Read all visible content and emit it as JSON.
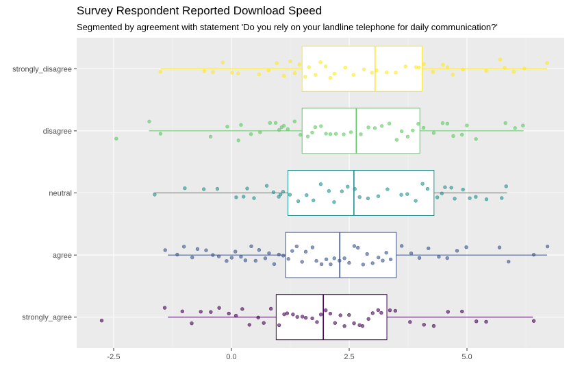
{
  "chart_data": {
    "type": "boxplot",
    "title": "Survey Respondent Reported Download Speed",
    "subtitle": "Segmented by agreement with statement 'Do you rely on your landline telephone for daily communication?'",
    "xlabel": "",
    "ylabel": "",
    "xlim": [
      -3.2,
      6.9
    ],
    "x_ticks": [
      -2.5,
      0.0,
      2.5,
      5.0
    ],
    "x_tick_labels": [
      "-2.5",
      "0.0",
      "2.5",
      "5.0"
    ],
    "categories": [
      "strongly_disagree",
      "disagree",
      "neutral",
      "agree",
      "strongly_agree"
    ],
    "grid": true,
    "legend": "none",
    "colors": {
      "strongly_disagree": "#fde725",
      "disagree": "#5ec962",
      "neutral": "#21918c",
      "agree": "#3b528b",
      "strongly_agree": "#440154"
    },
    "boxes": [
      {
        "category": "strongly_disagree",
        "whisker_low": -1.5,
        "q1": 1.5,
        "median": 3.05,
        "q3": 4.05,
        "whisker_high": 6.7
      },
      {
        "category": "disagree",
        "whisker_low": -1.75,
        "q1": 1.5,
        "median": 2.65,
        "q3": 4.0,
        "whisker_high": 6.2
      },
      {
        "category": "neutral",
        "whisker_low": -1.65,
        "q1": 1.2,
        "median": 2.6,
        "q3": 4.3,
        "whisker_high": 5.85
      },
      {
        "category": "agree",
        "whisker_low": -1.35,
        "q1": 1.15,
        "median": 2.3,
        "q3": 3.5,
        "whisker_high": 6.7
      },
      {
        "category": "strongly_agree",
        "whisker_low": -1.35,
        "q1": 0.95,
        "median": 1.95,
        "q3": 3.3,
        "whisker_high": 6.4
      }
    ],
    "points": {
      "strongly_disagree": [
        -1.5,
        -0.6,
        -0.4,
        -0.2,
        0.0,
        0.15,
        0.6,
        0.8,
        0.95,
        1.1,
        1.25,
        1.35,
        1.45,
        1.55,
        1.65,
        1.8,
        1.9,
        2.0,
        2.1,
        2.2,
        2.4,
        2.6,
        2.8,
        3.0,
        3.1,
        3.3,
        3.5,
        3.7,
        3.9,
        4.0,
        4.1,
        4.3,
        4.5,
        4.6,
        4.7,
        4.9,
        5.4,
        5.7,
        5.8,
        6.0,
        6.2,
        6.7
      ],
      "disagree": [
        -2.45,
        -1.75,
        -1.5,
        -0.45,
        -0.1,
        0.15,
        0.2,
        0.4,
        0.6,
        0.8,
        0.95,
        1.0,
        1.05,
        1.1,
        1.2,
        1.35,
        1.45,
        1.6,
        1.7,
        1.8,
        1.9,
        2.0,
        2.1,
        2.2,
        2.4,
        2.55,
        2.75,
        2.9,
        3.05,
        3.2,
        3.35,
        3.5,
        3.6,
        3.75,
        3.85,
        3.95,
        4.1,
        4.3,
        4.5,
        4.6,
        4.7,
        4.9,
        5.0,
        5.2,
        5.8,
        6.0,
        6.2
      ],
      "neutral": [
        -1.65,
        -1.0,
        -0.6,
        -0.3,
        0.1,
        0.25,
        0.35,
        0.5,
        0.75,
        0.9,
        1.0,
        1.05,
        1.1,
        1.25,
        1.4,
        1.6,
        1.75,
        1.9,
        2.05,
        2.2,
        2.35,
        2.45,
        2.6,
        2.7,
        2.9,
        3.1,
        3.3,
        3.6,
        3.75,
        3.9,
        4.05,
        4.15,
        4.35,
        4.45,
        4.55,
        4.65,
        4.75,
        4.9,
        5.05,
        5.2,
        5.4,
        5.75,
        5.85
      ],
      "agree": [
        -1.4,
        -1.15,
        -1.0,
        -0.85,
        -0.7,
        -0.55,
        -0.4,
        -0.25,
        -0.1,
        0.0,
        0.1,
        0.2,
        0.3,
        0.4,
        0.5,
        0.6,
        0.7,
        0.8,
        0.9,
        1.0,
        1.1,
        1.2,
        1.3,
        1.4,
        1.5,
        1.6,
        1.7,
        1.8,
        1.9,
        2.0,
        2.1,
        2.2,
        2.3,
        2.4,
        2.5,
        2.6,
        2.7,
        2.8,
        2.9,
        3.0,
        3.1,
        3.2,
        3.3,
        3.4,
        3.6,
        3.8,
        4.0,
        4.2,
        4.4,
        4.6,
        4.8,
        5.0,
        5.7,
        5.9,
        6.4,
        6.7
      ],
      "strongly_agree": [
        -2.75,
        -1.4,
        -1.05,
        -0.85,
        -0.65,
        -0.45,
        -0.25,
        -0.05,
        0.1,
        0.25,
        0.4,
        0.55,
        0.7,
        0.85,
        1.0,
        1.1,
        1.2,
        1.3,
        1.4,
        1.5,
        1.6,
        1.7,
        1.8,
        1.9,
        2.0,
        2.1,
        2.2,
        2.3,
        2.4,
        2.5,
        2.6,
        2.7,
        2.8,
        2.9,
        3.0,
        3.1,
        3.2,
        3.35,
        3.5,
        3.8,
        4.1,
        4.3,
        4.6,
        4.9,
        5.2,
        5.4,
        6.4
      ]
    }
  }
}
